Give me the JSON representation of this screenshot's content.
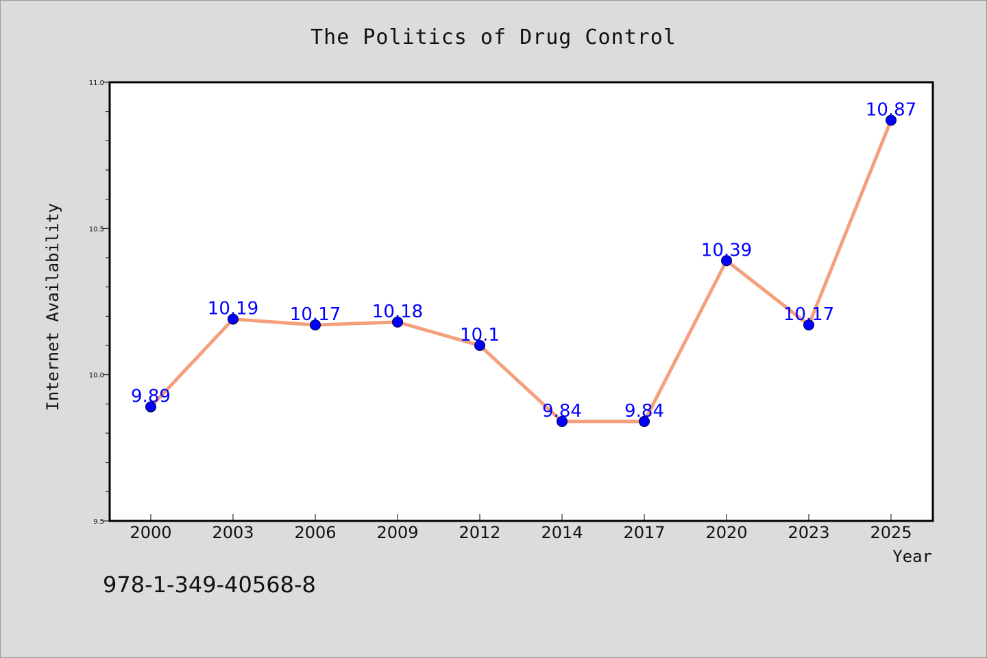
{
  "chart_data": {
    "type": "line",
    "title": "The Politics of Drug Control",
    "xlabel": "Year",
    "ylabel": "Internet Availability",
    "categories": [
      "2000",
      "2003",
      "2006",
      "2009",
      "2012",
      "2014",
      "2017",
      "2020",
      "2023",
      "2025"
    ],
    "series": [
      {
        "values": [
          9.89,
          10.19,
          10.17,
          10.18,
          10.1,
          9.84,
          9.84,
          10.39,
          10.17,
          10.87
        ],
        "labels": [
          "9.89",
          "10.19",
          "10.17",
          "10.18",
          "10.1",
          "9.84",
          "9.84",
          "10.39",
          "10.17",
          "10.87"
        ],
        "line_color": "#f4a07c",
        "marker_color": "#0000ff"
      }
    ],
    "ylim": [
      9.5,
      11.0
    ],
    "yticks": [
      "9.5",
      "10.0",
      "10.5",
      "11.0"
    ],
    "grid": false,
    "legend": "none"
  },
  "footer": {
    "isbn": "978-1-349-40568-8"
  },
  "colors": {
    "background": "#dcdcdc",
    "plot_background": "#ffffff",
    "line": "#f4a07c",
    "marker": "#0000ff",
    "label": "#0000ff"
  }
}
